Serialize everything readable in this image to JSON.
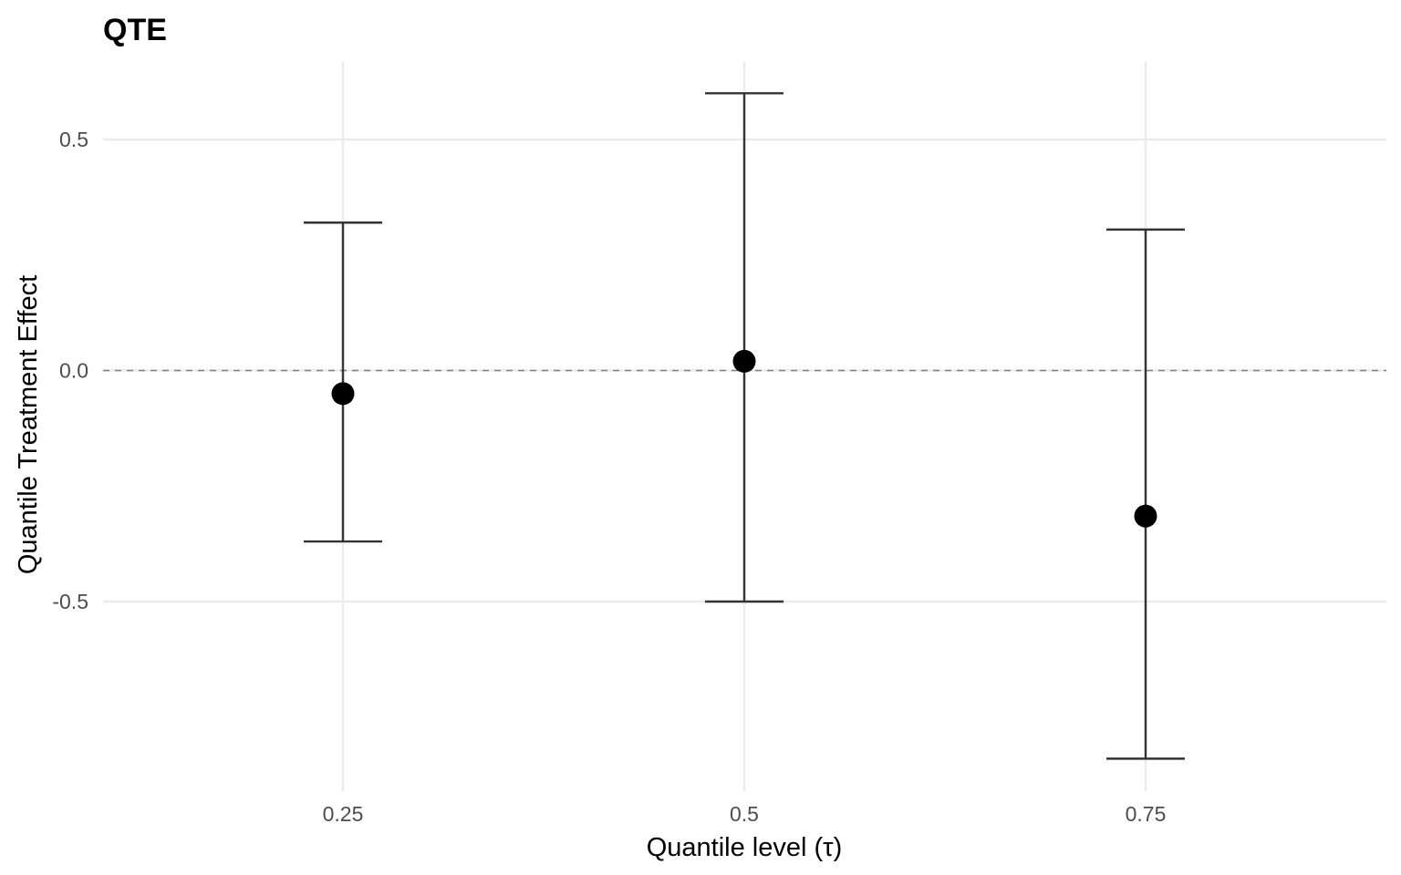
{
  "chart_data": {
    "type": "scatter",
    "title": "QTE",
    "xlabel": "Quantile level (τ)",
    "ylabel": "Quantile Treatment Effect",
    "x_categories": [
      "0.25",
      "0.5",
      "0.75"
    ],
    "points": [
      {
        "x": "0.25",
        "estimate": -0.05,
        "ci_low": -0.37,
        "ci_high": 0.32
      },
      {
        "x": "0.5",
        "estimate": 0.02,
        "ci_low": -0.5,
        "ci_high": 0.6
      },
      {
        "x": "0.75",
        "estimate": -0.315,
        "ci_low": -0.84,
        "ci_high": 0.305
      }
    ],
    "y_ticks": [
      {
        "value": 0.5,
        "label": "0.5"
      },
      {
        "value": 0.0,
        "label": "0.0"
      },
      {
        "value": -0.5,
        "label": "-0.5"
      }
    ],
    "ylim": [
      -0.9,
      0.67
    ],
    "reference_line": {
      "y": 0,
      "style": "dashed",
      "color": "#808080"
    },
    "grid": true,
    "colors": {
      "grid": "#ebebeb",
      "point": "#000000",
      "errorbar": "#333333",
      "tick_label": "#4d4d4d"
    }
  }
}
